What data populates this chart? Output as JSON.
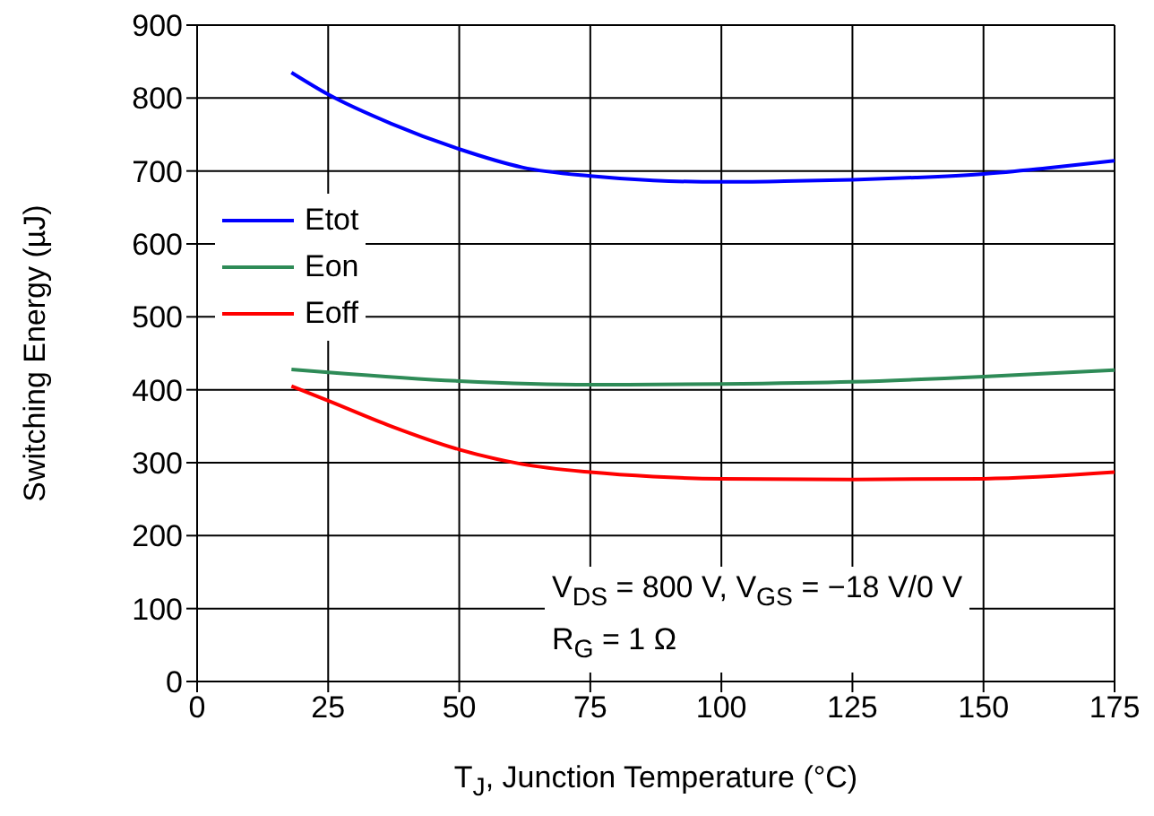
{
  "chart_data": {
    "type": "line",
    "xlabel": "T$_{J}$, Junction Temperature (°C)",
    "ylabel": "Switching Energy (µJ)",
    "xlim": [
      0,
      175
    ],
    "xticks": [
      0,
      25,
      50,
      75,
      100,
      125,
      150,
      175
    ],
    "ylim": [
      0,
      900
    ],
    "yticks": [
      0,
      100,
      200,
      300,
      400,
      500,
      600,
      700,
      800,
      900
    ],
    "grid": true,
    "legend": "top left",
    "marker": "none",
    "line_style": "solid",
    "annotations": [
      "V$_{DS}$ = 800 V, V$_{GS}$ = −18 V/0 V",
      "R$_{G}$ = 1 Ω"
    ],
    "series": [
      {
        "name": "Etot",
        "color": "#0000ff",
        "x": [
          18,
          25,
          37,
          50,
          62,
          75,
          87,
          100,
          112,
          125,
          137,
          150,
          162,
          175
        ],
        "values": [
          835,
          805,
          765,
          730,
          705,
          693,
          687,
          685,
          686,
          688,
          691,
          696,
          704,
          714
        ]
      },
      {
        "name": "Eon",
        "color": "#2e8b57",
        "x": [
          18,
          25,
          50,
          75,
          100,
          125,
          150,
          175
        ],
        "values": [
          428,
          424,
          412,
          407,
          408,
          411,
          418,
          427
        ]
      },
      {
        "name": "Eoff",
        "color": "#ff0000",
        "x": [
          18,
          25,
          37,
          50,
          62,
          75,
          87,
          100,
          125,
          150,
          175
        ],
        "values": [
          405,
          385,
          350,
          318,
          298,
          287,
          281,
          278,
          277,
          278,
          287
        ]
      }
    ]
  }
}
